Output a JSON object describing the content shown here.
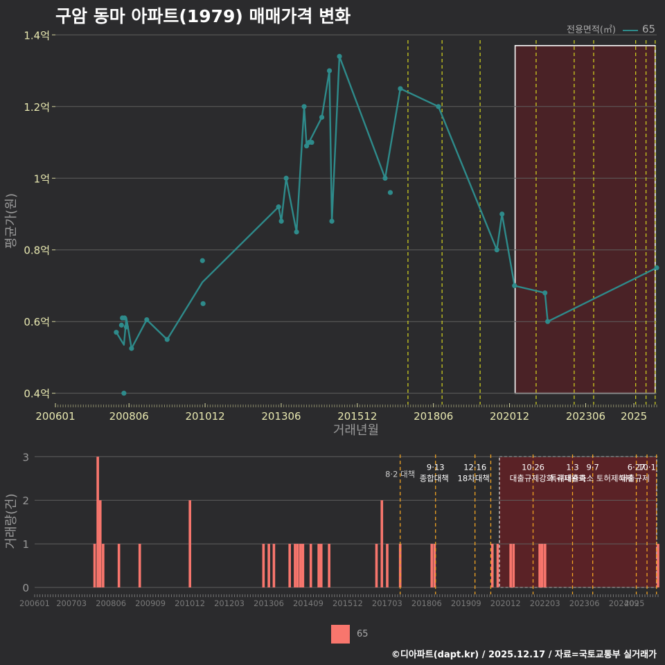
{
  "title": "구암 동마 아파트(1979) 매매가격 변화",
  "legend": {
    "title": "전용면적(㎡)",
    "item": "65",
    "line_color": "#2e8b8b",
    "bar_color": "#f8766d"
  },
  "credit": "©디아파트(dapt.kr) / 2025.12.17 / 자료=국토교통부 실거래가",
  "chart_data": [
    {
      "type": "line",
      "xlabel": "거래년월",
      "ylabel": "평균가(원)",
      "x_tick_labels": [
        "200601",
        "200806",
        "201012",
        "201306",
        "201512",
        "201806",
        "202012",
        "202306",
        "2025"
      ],
      "x_tick_values": [
        2006.0,
        2008.417,
        2010.917,
        2013.417,
        2015.917,
        2018.417,
        2020.917,
        2023.417,
        2025.0
      ],
      "xlim": [
        2006.0,
        2025.75
      ],
      "ylim": [
        0.38,
        1.42
      ],
      "y_ticks": [
        0.4,
        0.6,
        0.8,
        1.0,
        1.2,
        1.4
      ],
      "y_tick_labels": [
        "0.4억",
        "0.6억",
        "0.8억",
        "1억",
        "1.2억",
        "1.4억"
      ],
      "highlight_range": [
        2021.1,
        2025.7
      ],
      "policy_lines": [
        2017.58,
        2018.7,
        2019.95,
        2021.79,
        2023.04,
        2023.68,
        2025.06,
        2025.4,
        2025.7
      ],
      "series": [
        {
          "name": "65",
          "line": {
            "x": [
              2008.0,
              2008.25,
              2008.33,
              2008.5,
              2009.0,
              2009.67,
              2010.83,
              2013.33,
              2013.42,
              2013.58,
              2013.92,
              2014.17,
              2014.25,
              2014.33,
              2014.75,
              2015.0,
              2015.08,
              2015.33,
              2016.83,
              2017.33,
              2018.58,
              2020.5,
              2020.67,
              2021.08,
              2022.08,
              2022.17,
              2025.75
            ],
            "y": [
              0.57,
              0.535,
              0.61,
              0.525,
              0.605,
              0.55,
              0.71,
              0.92,
              0.88,
              1.0,
              0.85,
              1.2,
              1.09,
              1.1,
              1.17,
              1.3,
              0.88,
              1.34,
              1.0,
              1.25,
              1.2,
              0.8,
              0.9,
              0.7,
              0.68,
              0.6,
              0.75
            ]
          },
          "points": {
            "x": [
              2008.0,
              2008.17,
              2008.2,
              2008.25,
              2008.27,
              2008.33,
              2008.5,
              2009.0,
              2009.67,
              2010.83,
              2010.85,
              2013.33,
              2013.42,
              2013.58,
              2013.92,
              2014.17,
              2014.25,
              2014.33,
              2014.42,
              2014.75,
              2015.0,
              2015.08,
              2015.33,
              2016.83,
              2017.0,
              2017.33,
              2018.58,
              2020.5,
              2020.67,
              2021.08,
              2022.08,
              2022.17,
              2025.75
            ],
            "y": [
              0.57,
              0.59,
              0.61,
              0.4,
              0.61,
              0.585,
              0.525,
              0.605,
              0.55,
              0.77,
              0.65,
              0.92,
              0.88,
              1.0,
              0.85,
              1.2,
              1.09,
              1.1,
              1.1,
              1.17,
              1.3,
              0.88,
              1.34,
              1.0,
              0.96,
              1.25,
              1.2,
              0.8,
              0.9,
              0.7,
              0.68,
              0.6,
              0.75
            ]
          }
        }
      ]
    },
    {
      "type": "bar",
      "ylabel": "거래량(건)",
      "x_tick_labels": [
        "200601",
        "200703",
        "200806",
        "200909",
        "201012",
        "201203",
        "201306",
        "201409",
        "201512",
        "201703",
        "201806",
        "201909",
        "202012",
        "202203",
        "202306",
        "202409",
        "2025"
      ],
      "x_tick_values": [
        2006.0,
        2007.167,
        2008.417,
        2009.667,
        2010.917,
        2012.167,
        2013.417,
        2014.667,
        2015.917,
        2017.167,
        2018.417,
        2019.667,
        2020.917,
        2022.167,
        2023.417,
        2024.667,
        2025.0
      ],
      "xlim": [
        2006.0,
        2025.75
      ],
      "ylim": [
        0,
        3.1
      ],
      "y_ticks": [
        0,
        1,
        2,
        3
      ],
      "highlight_range": [
        2020.9,
        2025.75
      ],
      "bars": {
        "x": [
          2007.9,
          2008.0,
          2008.08,
          2008.17,
          2008.67,
          2009.33,
          2010.92,
          2013.25,
          2013.42,
          2013.58,
          2014.08,
          2014.25,
          2014.33,
          2014.42,
          2014.5,
          2014.75,
          2015.0,
          2015.08,
          2015.33,
          2016.83,
          2017.0,
          2017.17,
          2017.58,
          2018.58,
          2018.67,
          2020.5,
          2020.67,
          2021.08,
          2021.17,
          2022.0,
          2022.08,
          2022.17,
          2025.75
        ],
        "y": [
          1,
          3,
          2,
          1,
          1,
          1,
          2,
          1,
          1,
          1,
          1,
          1,
          1,
          1,
          1,
          1,
          1,
          1,
          1,
          1,
          2,
          1,
          1,
          1,
          1,
          1,
          1,
          1,
          1,
          1,
          1,
          1,
          1
        ]
      },
      "policy_lines": [
        {
          "x": 2017.58,
          "label": "8·2 대책",
          "color": "#f5a623"
        },
        {
          "x": 2018.7,
          "label": "9·13\n종합대책",
          "color": "#f5a623"
        },
        {
          "x": 2019.95,
          "label": "12·16\n18차대책",
          "color": "#f5a623"
        },
        {
          "x": 2020.45,
          "label": "",
          "color": "#f5a623"
        },
        {
          "x": 2021.79,
          "label": "10·26\n대출규제강화",
          "color": "#f5a623"
        },
        {
          "x": 2023.04,
          "label": "1·3\n규제완화",
          "color": "#f5a623"
        },
        {
          "x": 2023.68,
          "label": "9·7\n특례대출축소 토허제해제",
          "color": "#f5a623"
        },
        {
          "x": 2025.06,
          "label": "6·27\n대출규제",
          "color": "#f5a623"
        },
        {
          "x": 2025.4,
          "label": "10·1",
          "color": "#f5a623"
        },
        {
          "x": 2025.7,
          "label": "",
          "color": "#f5a623"
        }
      ]
    }
  ]
}
